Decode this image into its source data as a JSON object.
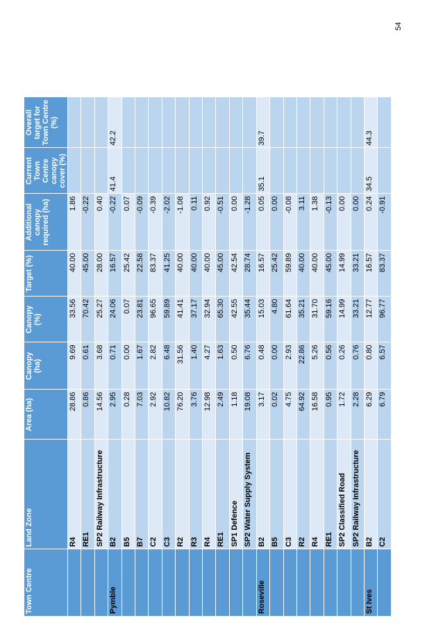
{
  "page_number": "54",
  "table": {
    "headers": [
      "Town Centre",
      "Land Zone",
      "Area (ha)",
      "Canopy (ha)",
      "Canopy (%)",
      "Target (%)",
      "Additional canopy required (ha)",
      "Current Town Centre canopy cover (%)",
      "Overall target for Town Centre (%)"
    ],
    "rows": [
      {
        "tc": "",
        "lz": "R4",
        "area": "28.86",
        "cha": "9.69",
        "cpct": "33.56",
        "tgt": "40.00",
        "add": "1.86",
        "cur": "",
        "ovr": ""
      },
      {
        "tc": "",
        "lz": "RE1",
        "area": "0.86",
        "cha": "0.61",
        "cpct": "70.42",
        "tgt": "45.00",
        "add": "-0.22",
        "cur": "",
        "ovr": ""
      },
      {
        "tc": "",
        "lz": "SP2 Railway Infrastructure",
        "area": "14.56",
        "cha": "3.68",
        "cpct": "25.27",
        "tgt": "28.00",
        "add": "0.40",
        "cur": "",
        "ovr": ""
      },
      {
        "tc": "Pymble",
        "lz": "B2",
        "area": "2.95",
        "cha": "0.71",
        "cpct": "24.06",
        "tgt": "16.57",
        "add": "-0.22",
        "cur": "41.4",
        "ovr": "42.2"
      },
      {
        "tc": "",
        "lz": "B5",
        "area": "0.28",
        "cha": "0.00",
        "cpct": "0.07",
        "tgt": "25.42",
        "add": "0.07",
        "cur": "",
        "ovr": ""
      },
      {
        "tc": "",
        "lz": "B7",
        "area": "7.03",
        "cha": "1.67",
        "cpct": "23.81",
        "tgt": "22.58",
        "add": "-0.09",
        "cur": "",
        "ovr": ""
      },
      {
        "tc": "",
        "lz": "C2",
        "area": "2.92",
        "cha": "2.82",
        "cpct": "96.65",
        "tgt": "83.37",
        "add": "-0.39",
        "cur": "",
        "ovr": ""
      },
      {
        "tc": "",
        "lz": "C3",
        "area": "10.82",
        "cha": "6.48",
        "cpct": "59.89",
        "tgt": "41.25",
        "add": "-2.02",
        "cur": "",
        "ovr": ""
      },
      {
        "tc": "",
        "lz": "R2",
        "area": "76.20",
        "cha": "31.56",
        "cpct": "41.41",
        "tgt": "40.00",
        "add": "-1.08",
        "cur": "",
        "ovr": ""
      },
      {
        "tc": "",
        "lz": "R3",
        "area": "3.76",
        "cha": "1.40",
        "cpct": "37.17",
        "tgt": "40.00",
        "add": "0.11",
        "cur": "",
        "ovr": ""
      },
      {
        "tc": "",
        "lz": "R4",
        "area": "12.98",
        "cha": "4.27",
        "cpct": "32.94",
        "tgt": "40.00",
        "add": "0.92",
        "cur": "",
        "ovr": ""
      },
      {
        "tc": "",
        "lz": "RE1",
        "area": "2.49",
        "cha": "1.63",
        "cpct": "65.30",
        "tgt": "45.00",
        "add": "-0.51",
        "cur": "",
        "ovr": ""
      },
      {
        "tc": "",
        "lz": "SP1 Defence",
        "area": "1.18",
        "cha": "0.50",
        "cpct": "42.55",
        "tgt": "42.54",
        "add": "0.00",
        "cur": "",
        "ovr": ""
      },
      {
        "tc": "",
        "lz": "SP2 Water Supply System",
        "area": "19.08",
        "cha": "6.76",
        "cpct": "35.44",
        "tgt": "28.74",
        "add": "-1.28",
        "cur": "",
        "ovr": ""
      },
      {
        "tc": "Roseville",
        "lz": "B2",
        "area": "3.17",
        "cha": "0.48",
        "cpct": "15.03",
        "tgt": "16.57",
        "add": "0.05",
        "cur": "35.1",
        "ovr": "39.7"
      },
      {
        "tc": "",
        "lz": "B5",
        "area": "0.02",
        "cha": "0.00",
        "cpct": "4.80",
        "tgt": "25.42",
        "add": "0.00",
        "cur": "",
        "ovr": ""
      },
      {
        "tc": "",
        "lz": "C3",
        "area": "4.75",
        "cha": "2.93",
        "cpct": "61.64",
        "tgt": "59.89",
        "add": "-0.08",
        "cur": "",
        "ovr": ""
      },
      {
        "tc": "",
        "lz": "R2",
        "area": "64.92",
        "cha": "22.86",
        "cpct": "35.21",
        "tgt": "40.00",
        "add": "3.11",
        "cur": "",
        "ovr": ""
      },
      {
        "tc": "",
        "lz": "R4",
        "area": "16.58",
        "cha": "5.26",
        "cpct": "31.70",
        "tgt": "40.00",
        "add": "1.38",
        "cur": "",
        "ovr": ""
      },
      {
        "tc": "",
        "lz": "RE1",
        "area": "0.95",
        "cha": "0.56",
        "cpct": "59.16",
        "tgt": "45.00",
        "add": "-0.13",
        "cur": "",
        "ovr": ""
      },
      {
        "tc": "",
        "lz": "SP2 Classified Road",
        "area": "1.72",
        "cha": "0.26",
        "cpct": "14.99",
        "tgt": "14.99",
        "add": "0.00",
        "cur": "",
        "ovr": ""
      },
      {
        "tc": "",
        "lz": "SP2 Railway Infrastructure",
        "area": "2.28",
        "cha": "0.76",
        "cpct": "33.21",
        "tgt": "33.21",
        "add": "0.00",
        "cur": "",
        "ovr": ""
      },
      {
        "tc": "St Ives",
        "lz": "B2",
        "area": "6.29",
        "cha": "0.80",
        "cpct": "12.77",
        "tgt": "16.57",
        "add": "0.24",
        "cur": "34.5",
        "ovr": "44.3"
      },
      {
        "tc": "",
        "lz": "C2",
        "area": "6.79",
        "cha": "6.57",
        "cpct": "96.77",
        "tgt": "83.37",
        "add": "-0.91",
        "cur": "",
        "ovr": ""
      }
    ]
  },
  "colors": {
    "header_bg": "#5b9bd5",
    "row_light": "#dde9f6",
    "row_mid": "#bcd5ee",
    "header_text": "#ffffff"
  }
}
